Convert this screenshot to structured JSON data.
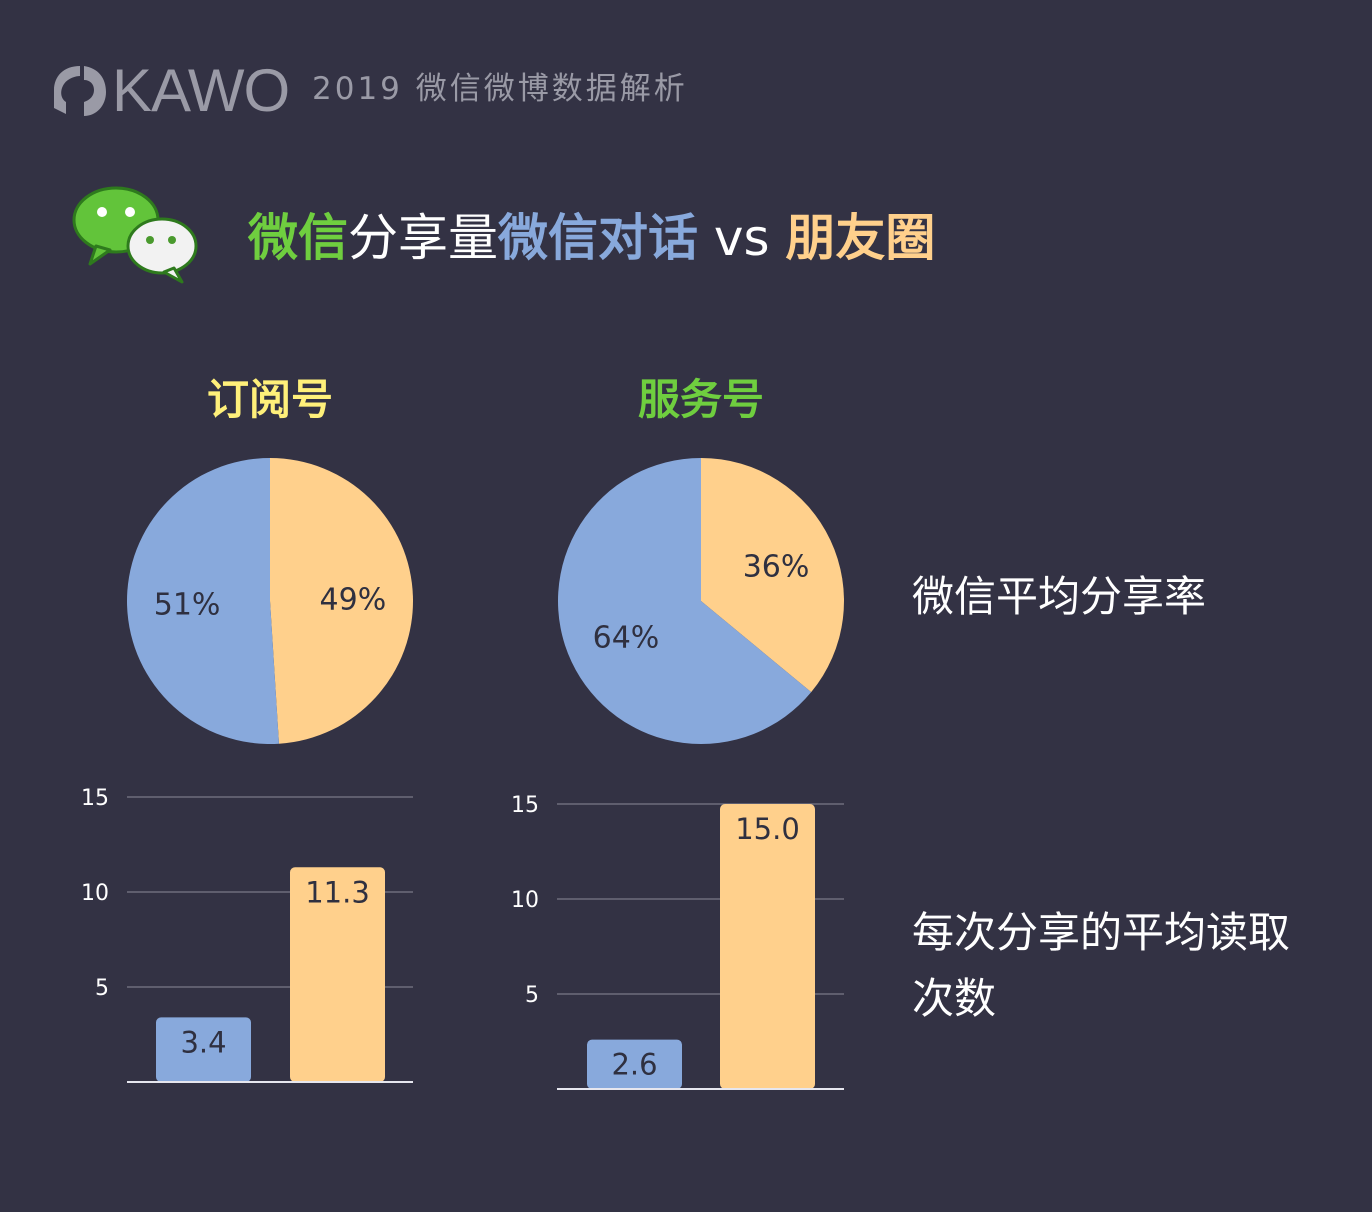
{
  "header": {
    "brand": "KAWO",
    "subtitle": "2019 微信微博数据解析"
  },
  "headline": {
    "part1": "微信",
    "part2": "分享量",
    "part3": "微信对话",
    "part4": " vs ",
    "part5": "朋友圈"
  },
  "colors": {
    "background": "#333244",
    "blue": "#88a9dc",
    "orange": "#ffd08c",
    "green": "#6fce3f",
    "yellow": "#fff07a",
    "grid": "#6e6d7c"
  },
  "icons": [
    "wechat-logo-icon",
    "kawo-logo-icon"
  ],
  "side_labels": {
    "share_rate": "微信平均分享率",
    "reads_line1": "每次分享的平均读取",
    "reads_line2": "次数"
  },
  "chart_data": [
    {
      "type": "pie",
      "title": "订阅号",
      "title_color": "#fff07a",
      "slices": [
        {
          "label": "49%",
          "value": 49,
          "color": "#ffd08c"
        },
        {
          "label": "51%",
          "value": 51,
          "color": "#88a9dc"
        }
      ]
    },
    {
      "type": "pie",
      "title": "服务号",
      "title_color": "#6fce3f",
      "slices": [
        {
          "label": "36%",
          "value": 36,
          "color": "#ffd08c"
        },
        {
          "label": "64%",
          "value": 64,
          "color": "#88a9dc"
        }
      ]
    },
    {
      "type": "bar",
      "values": [
        3.4,
        11.3
      ],
      "value_labels": [
        "3.4",
        "11.3"
      ],
      "colors": [
        "#88a9dc",
        "#ffd08c"
      ],
      "ylim": [
        0,
        15
      ],
      "yticks": [
        "5",
        "10",
        "15"
      ],
      "grid": true
    },
    {
      "type": "bar",
      "values": [
        2.6,
        15.0
      ],
      "value_labels": [
        "2.6",
        "15.0"
      ],
      "colors": [
        "#88a9dc",
        "#ffd08c"
      ],
      "ylim": [
        0,
        15
      ],
      "yticks": [
        "5",
        "10",
        "15"
      ],
      "grid": true
    }
  ]
}
